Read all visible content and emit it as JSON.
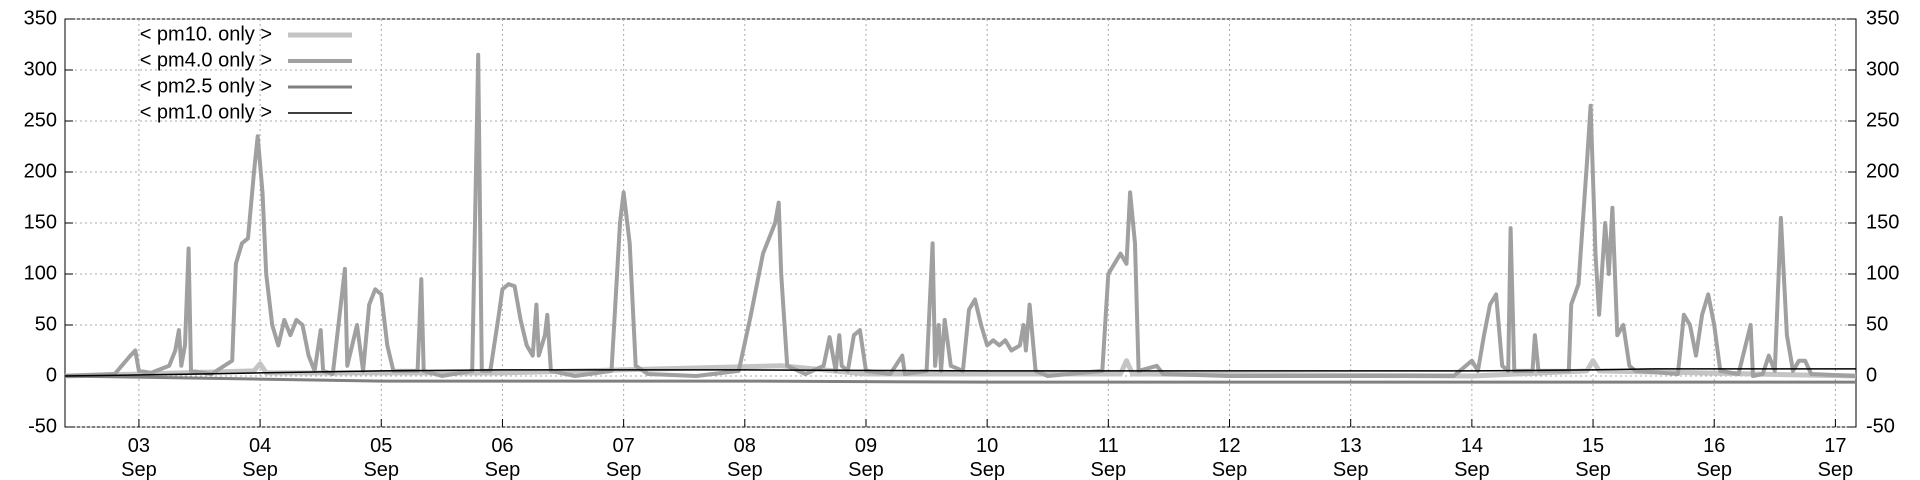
{
  "chart_data": {
    "type": "line",
    "legend": "upper left",
    "grid": true,
    "xlim": [
      2.39,
      17.17
    ],
    "xticks": [
      {
        "value": 3,
        "label": "03 Sep"
      },
      {
        "value": 4,
        "label": "04 Sep"
      },
      {
        "value": 5,
        "label": "05 Sep"
      },
      {
        "value": 6,
        "label": "06 Sep"
      },
      {
        "value": 7,
        "label": "07 Sep"
      },
      {
        "value": 8,
        "label": "08 Sep"
      },
      {
        "value": 9,
        "label": "09 Sep"
      },
      {
        "value": 10,
        "label": "10 Sep"
      },
      {
        "value": 11,
        "label": "11 Sep"
      },
      {
        "value": 12,
        "label": "12 Sep"
      },
      {
        "value": 13,
        "label": "13 Sep"
      },
      {
        "value": 14,
        "label": "14 Sep"
      },
      {
        "value": 15,
        "label": "15 Sep"
      },
      {
        "value": 16,
        "label": "16 Sep"
      },
      {
        "value": 17,
        "label": "17 Sep"
      }
    ],
    "ylim": [
      -50,
      350
    ],
    "yticks": [
      -50,
      0,
      50,
      100,
      150,
      200,
      250,
      300,
      350
    ],
    "y2lim": [
      -50,
      350
    ],
    "y2ticks": [
      -50,
      0,
      50,
      100,
      150,
      200,
      250,
      300,
      350
    ],
    "series": [
      {
        "name": "< pm10. only >",
        "color": "#c4c4c4",
        "width": 5,
        "x": [
          2.39,
          3.95,
          4.0,
          4.05,
          6,
          8.3,
          9,
          11.1,
          11.15,
          11.2,
          14,
          14.95,
          15.0,
          15.05,
          17.17
        ],
        "values": [
          0,
          5,
          12,
          3,
          3,
          10,
          2,
          2,
          15,
          2,
          0,
          5,
          15,
          5,
          0
        ]
      },
      {
        "name": "< pm4.0 only >",
        "color": "#a0a0a0",
        "width": 4,
        "x": [
          2.39,
          2.8,
          2.93,
          2.97,
          3.0,
          3.1,
          3.25,
          3.3,
          3.33,
          3.35,
          3.38,
          3.41,
          3.43,
          3.6,
          3.77,
          3.8,
          3.85,
          3.9,
          3.95,
          3.98,
          4.02,
          4.05,
          4.1,
          4.15,
          4.2,
          4.25,
          4.3,
          4.35,
          4.4,
          4.45,
          4.5,
          4.52,
          4.6,
          4.7,
          4.72,
          4.8,
          4.85,
          4.9,
          4.95,
          5.0,
          5.05,
          5.1,
          5.3,
          5.33,
          5.35,
          5.5,
          5.75,
          5.8,
          5.83,
          5.9,
          5.97,
          6.0,
          6.05,
          6.1,
          6.15,
          6.2,
          6.25,
          6.28,
          6.3,
          6.35,
          6.37,
          6.4,
          6.6,
          6.9,
          6.97,
          7.0,
          7.05,
          7.1,
          7.2,
          7.6,
          7.95,
          8.05,
          8.15,
          8.25,
          8.28,
          8.3,
          8.35,
          8.5,
          8.65,
          8.7,
          8.75,
          8.78,
          8.8,
          8.85,
          8.9,
          8.95,
          9.0,
          9.2,
          9.3,
          9.32,
          9.5,
          9.55,
          9.57,
          9.6,
          9.62,
          9.65,
          9.7,
          9.8,
          9.85,
          9.9,
          9.95,
          10.0,
          10.05,
          10.1,
          10.15,
          10.2,
          10.27,
          10.3,
          10.32,
          10.35,
          10.4,
          10.5,
          10.95,
          11.0,
          11.05,
          11.1,
          11.15,
          11.18,
          11.22,
          11.25,
          11.4,
          11.45,
          12.0,
          13.0,
          13.85,
          14.0,
          14.05,
          14.1,
          14.15,
          14.2,
          14.25,
          14.3,
          14.32,
          14.35,
          14.5,
          14.52,
          14.55,
          14.8,
          14.82,
          14.88,
          14.95,
          14.98,
          15.02,
          15.05,
          15.1,
          15.13,
          15.16,
          15.2,
          15.25,
          15.3,
          15.35,
          15.7,
          15.75,
          15.8,
          15.85,
          15.9,
          15.95,
          16.0,
          16.05,
          16.2,
          16.3,
          16.32,
          16.4,
          16.45,
          16.5,
          16.55,
          16.6,
          16.65,
          16.7,
          16.75,
          16.8,
          17.17
        ],
        "values": [
          0,
          2,
          20,
          25,
          5,
          3,
          10,
          25,
          45,
          10,
          30,
          125,
          5,
          2,
          15,
          110,
          130,
          135,
          200,
          235,
          180,
          100,
          50,
          30,
          55,
          40,
          55,
          50,
          20,
          5,
          45,
          5,
          2,
          105,
          10,
          50,
          5,
          70,
          85,
          80,
          30,
          5,
          5,
          95,
          5,
          0,
          5,
          315,
          5,
          5,
          60,
          85,
          90,
          88,
          55,
          30,
          20,
          70,
          20,
          40,
          60,
          5,
          0,
          5,
          150,
          180,
          130,
          10,
          2,
          0,
          5,
          60,
          120,
          150,
          170,
          100,
          10,
          2,
          10,
          38,
          5,
          40,
          10,
          5,
          40,
          45,
          5,
          2,
          20,
          2,
          5,
          130,
          10,
          50,
          5,
          55,
          10,
          5,
          65,
          75,
          50,
          30,
          35,
          30,
          35,
          25,
          30,
          50,
          25,
          70,
          5,
          0,
          5,
          100,
          110,
          120,
          110,
          180,
          130,
          5,
          10,
          2,
          0,
          0,
          0,
          15,
          5,
          40,
          70,
          80,
          10,
          5,
          145,
          5,
          5,
          40,
          5,
          5,
          70,
          90,
          210,
          265,
          120,
          60,
          150,
          100,
          165,
          40,
          50,
          10,
          5,
          2,
          60,
          50,
          20,
          60,
          80,
          50,
          5,
          2,
          50,
          0,
          2,
          20,
          5,
          155,
          40,
          5,
          15,
          15,
          2,
          0
        ]
      },
      {
        "name": "< pm2.5 only >",
        "color": "#808080",
        "width": 3,
        "x": [
          2.39,
          4,
          5,
          6,
          8,
          10,
          12,
          14,
          16,
          17.17
        ],
        "values": [
          0,
          -3,
          -5,
          -5,
          -5,
          -6,
          -6,
          -6,
          -6,
          -6
        ]
      },
      {
        "name": "< pm1.0 only >",
        "color": "#000000",
        "width": 1.5,
        "x": [
          2.39,
          3.5,
          4.0,
          5.0,
          6.0,
          8.0,
          10.0,
          12.0,
          14.0,
          15.0,
          15.5,
          17.17
        ],
        "values": [
          0,
          2,
          3,
          5,
          6,
          6,
          5,
          5,
          5,
          6,
          7,
          7
        ]
      }
    ]
  }
}
